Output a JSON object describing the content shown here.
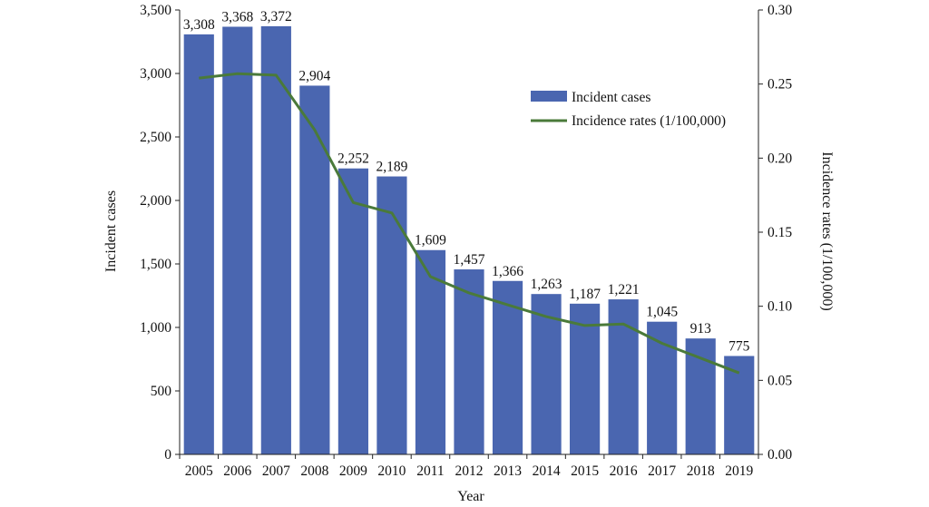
{
  "chart_data": {
    "type": "bar",
    "categories": [
      "2005",
      "2006",
      "2007",
      "2008",
      "2009",
      "2010",
      "2011",
      "2012",
      "2013",
      "2014",
      "2015",
      "2016",
      "2017",
      "2018",
      "2019"
    ],
    "series": [
      {
        "name": "Incident cases",
        "type": "bar",
        "axis": "left",
        "values": [
          3308,
          3368,
          3372,
          2904,
          2252,
          2189,
          1609,
          1457,
          1366,
          1263,
          1187,
          1221,
          1045,
          913,
          775
        ],
        "labels": [
          "3,308",
          "3,368",
          "3,372",
          "2,904",
          "2,252",
          "2,189",
          "1,609",
          "1,457",
          "1,366",
          "1,263",
          "1,187",
          "1,221",
          "1,045",
          "913",
          "775"
        ]
      },
      {
        "name": "Incidence rates (1/100,000)",
        "type": "line",
        "axis": "right",
        "values": [
          0.254,
          0.257,
          0.256,
          0.219,
          0.17,
          0.163,
          0.12,
          0.109,
          0.101,
          0.093,
          0.087,
          0.088,
          0.075,
          0.065,
          0.055
        ]
      }
    ],
    "xlabel": "Year",
    "ylabel": "Incident cases",
    "y2label": "Incidence rates (1/100,000)",
    "ylim": [
      0,
      3500
    ],
    "y2lim": [
      0,
      0.3
    ],
    "yticks": [
      "0",
      "500",
      "1,000",
      "1,500",
      "2,000",
      "2,500",
      "3,000",
      "3,500"
    ],
    "y2ticks": [
      "0.00",
      "0.05",
      "0.10",
      "0.15",
      "0.20",
      "0.25",
      "0.30"
    ],
    "legend_position": "top-right",
    "grid": false
  },
  "colors": {
    "bar": "#4a66b0",
    "line": "#4a7a3a",
    "axis": "#222222"
  }
}
